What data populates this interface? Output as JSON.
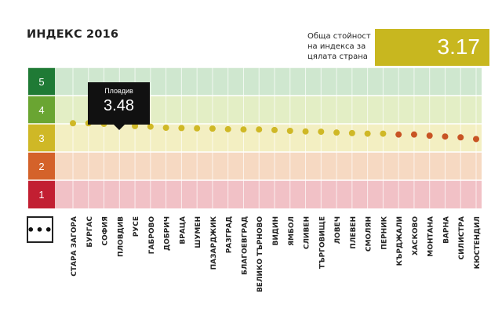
{
  "header": {
    "title": "ИНДЕКС 2016"
  },
  "overall": {
    "label": "Обща стойност на индекса за цялата страна",
    "value": "3.17",
    "color": "#c8b71f"
  },
  "more_button": {
    "label": "•••"
  },
  "tooltip": {
    "name": "Пловдив",
    "value": "3.48"
  },
  "bands": [
    {
      "level": "5",
      "dark": "#1f7a35",
      "light": "#cfe7cf"
    },
    {
      "level": "4",
      "dark": "#6aa532",
      "light": "#e3eec5"
    },
    {
      "level": "3",
      "dark": "#cfb826",
      "light": "#f3efc2"
    },
    {
      "level": "2",
      "dark": "#d4622a",
      "light": "#f6d9c2"
    },
    {
      "level": "1",
      "dark": "#c21f32",
      "light": "#f1c1c6"
    }
  ],
  "chart_data": {
    "type": "scatter",
    "ylim": [
      0.5,
      5.5
    ],
    "yticks": [
      "1",
      "2",
      "3",
      "4",
      "5"
    ],
    "grid": true,
    "categories": [
      "СТАРА ЗАГОРА",
      "БУРГАС",
      "СОФИЯ",
      "ПЛОВДИВ",
      "РУСЕ",
      "ГАБРОВО",
      "ДОБРИЧ",
      "ВРАЦА",
      "ШУМЕН",
      "ПАЗАРДЖИК",
      "РАЗГРАД",
      "БЛАГОЕВГРАД",
      "ВЕЛИКО ТЪРНОВО",
      "ВИДИН",
      "ЯМБОЛ",
      "СЛИВЕН",
      "ТЪРГОВИЩЕ",
      "ЛОВЕЧ",
      "ПЛЕВЕН",
      "СМОЛЯН",
      "ПЕРНИК",
      "КЪРДЖАЛИ",
      "ХАСКОВО",
      "МОНТАНА",
      "ВАРНА",
      "СИЛИСТРА",
      "КЮСТЕНДИЛ"
    ],
    "values": [
      3.52,
      3.52,
      3.5,
      3.48,
      3.42,
      3.4,
      3.36,
      3.35,
      3.34,
      3.33,
      3.31,
      3.3,
      3.3,
      3.28,
      3.25,
      3.23,
      3.22,
      3.19,
      3.17,
      3.15,
      3.15,
      3.12,
      3.12,
      3.08,
      3.05,
      3.02,
      2.96
    ],
    "point_colors": [
      "#cfb826",
      "#cfb826",
      "#cfb826",
      "#cfb826",
      "#cfb826",
      "#cfb826",
      "#cfb826",
      "#cfb826",
      "#cfb826",
      "#cfb826",
      "#cfb826",
      "#cfb826",
      "#cfb826",
      "#cfb826",
      "#cfb826",
      "#cfb826",
      "#cfb826",
      "#cfb826",
      "#cfb826",
      "#cfb826",
      "#cfb826",
      "#c85424",
      "#c85424",
      "#c85424",
      "#c85424",
      "#c85424",
      "#c85424"
    ]
  }
}
